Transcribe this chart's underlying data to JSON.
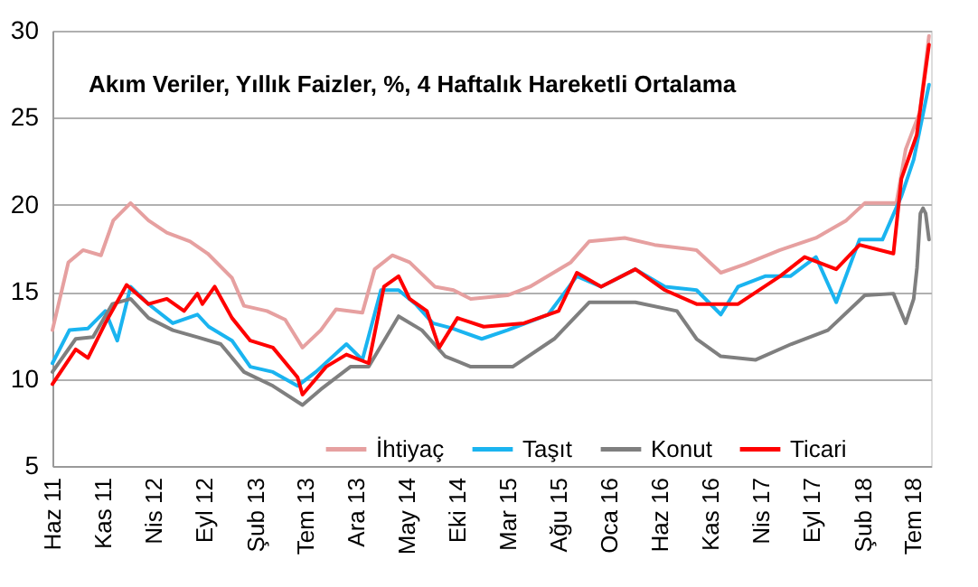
{
  "chart_data": {
    "type": "line",
    "title": "Akım Veriler, Yıllık Faizler, %, 4 Haftalık Hareketli Ortalama",
    "xlim": [
      "2011-06-01",
      "2018-08-25"
    ],
    "xticks": [
      {
        "value": "2011-06-01",
        "label": "Haz 11"
      },
      {
        "value": "2011-11-01",
        "label": "Kas 11"
      },
      {
        "value": "2012-04-01",
        "label": "Nis 12"
      },
      {
        "value": "2012-09-01",
        "label": "Eyl 12"
      },
      {
        "value": "2013-02-01",
        "label": "Şub 13"
      },
      {
        "value": "2013-07-01",
        "label": "Tem 13"
      },
      {
        "value": "2013-12-01",
        "label": "Ara 13"
      },
      {
        "value": "2014-05-01",
        "label": "May 14"
      },
      {
        "value": "2014-10-01",
        "label": "Eki 14"
      },
      {
        "value": "2015-03-01",
        "label": "Mar 15"
      },
      {
        "value": "2015-08-01",
        "label": "Ağu 15"
      },
      {
        "value": "2016-01-01",
        "label": "Oca 16"
      },
      {
        "value": "2016-06-01",
        "label": "Haz 16"
      },
      {
        "value": "2016-11-01",
        "label": "Kas 16"
      },
      {
        "value": "2017-04-01",
        "label": "Nis 17"
      },
      {
        "value": "2017-09-01",
        "label": "Eyl 17"
      },
      {
        "value": "2018-02-01",
        "label": "Şub 18"
      },
      {
        "value": "2018-07-01",
        "label": "Tem 18"
      }
    ],
    "ylim": [
      5,
      30
    ],
    "yticks": [
      5,
      10,
      15,
      20,
      25,
      30
    ],
    "grid": "y",
    "legend": "bottom",
    "marker": "none",
    "line_style": "solid",
    "series": [
      {
        "name": "İhtiyaç",
        "color": "#e6a0a0",
        "x": [
          "2011-06-01",
          "2011-07-19",
          "2011-09-01",
          "2011-10-25",
          "2011-12-01",
          "2012-01-22",
          "2012-03-16",
          "2012-05-10",
          "2012-07-19",
          "2012-09-10",
          "2012-11-22",
          "2012-12-28",
          "2013-03-07",
          "2013-05-01",
          "2013-06-22",
          "2013-08-16",
          "2013-10-01",
          "2013-12-19",
          "2014-01-25",
          "2014-03-19",
          "2014-05-10",
          "2014-07-25",
          "2014-09-19",
          "2014-11-10",
          "2015-02-28",
          "2015-05-07",
          "2015-09-07",
          "2015-11-01",
          "2016-02-16",
          "2016-05-16",
          "2016-09-19",
          "2016-12-01",
          "2017-02-13",
          "2017-05-28",
          "2017-09-13",
          "2017-12-13",
          "2018-02-07",
          "2018-05-13",
          "2018-06-10",
          "2018-07-22",
          "2018-08-19"
        ],
        "values": [
          12.8,
          16.7,
          17.4,
          17.1,
          19.1,
          20.1,
          19.1,
          18.4,
          17.9,
          17.2,
          15.8,
          14.2,
          13.9,
          13.4,
          11.8,
          12.8,
          14.0,
          13.8,
          16.3,
          17.1,
          16.7,
          15.3,
          15.1,
          14.6,
          14.8,
          15.3,
          16.7,
          17.9,
          18.1,
          17.7,
          17.4,
          16.1,
          16.6,
          17.4,
          18.1,
          19.1,
          20.1,
          20.1,
          23.2,
          25.3,
          29.7
        ]
      },
      {
        "name": "Taşıt",
        "color": "#1ab4f0",
        "x": [
          "2011-06-01",
          "2011-07-22",
          "2011-09-16",
          "2011-11-07",
          "2011-12-13",
          "2012-01-22",
          "2012-03-16",
          "2012-05-28",
          "2012-08-10",
          "2012-09-13",
          "2012-11-22",
          "2013-01-16",
          "2013-03-25",
          "2013-06-07",
          "2013-08-01",
          "2013-11-01",
          "2013-12-19",
          "2014-02-13",
          "2014-04-07",
          "2014-05-28",
          "2014-07-19",
          "2014-09-16",
          "2014-12-13",
          "2015-02-28",
          "2015-07-01",
          "2015-09-25",
          "2015-12-07",
          "2016-03-19",
          "2016-06-16",
          "2016-09-19",
          "2016-12-01",
          "2017-01-22",
          "2017-04-13",
          "2017-06-28",
          "2017-09-13",
          "2017-11-13",
          "2018-01-22",
          "2018-04-01",
          "2018-05-28",
          "2018-07-04",
          "2018-08-19"
        ],
        "values": [
          10.9,
          12.8,
          12.9,
          13.9,
          12.2,
          15.3,
          14.3,
          13.2,
          13.7,
          13.0,
          12.2,
          10.7,
          10.4,
          9.6,
          10.4,
          12.0,
          11.1,
          15.1,
          15.1,
          14.3,
          13.2,
          12.9,
          12.3,
          12.8,
          13.7,
          15.9,
          15.3,
          16.3,
          15.3,
          15.1,
          13.7,
          15.3,
          15.9,
          15.9,
          17.0,
          14.4,
          18.0,
          18.0,
          20.5,
          22.6,
          26.9
        ]
      },
      {
        "name": "Konut",
        "color": "#7f7f7f",
        "x": [
          "2011-06-01",
          "2011-08-10",
          "2011-10-01",
          "2011-11-28",
          "2012-01-22",
          "2012-03-16",
          "2012-05-28",
          "2012-08-10",
          "2012-10-19",
          "2012-12-28",
          "2013-03-25",
          "2013-06-22",
          "2013-08-16",
          "2013-11-13",
          "2014-01-07",
          "2014-04-07",
          "2014-06-16",
          "2014-08-25",
          "2014-11-10",
          "2015-03-16",
          "2015-07-19",
          "2015-11-01",
          "2016-03-19",
          "2016-07-22",
          "2016-09-19",
          "2016-12-01",
          "2017-03-16",
          "2017-07-01",
          "2017-10-19",
          "2018-02-07",
          "2018-05-04",
          "2018-06-10",
          "2018-07-04",
          "2018-07-14",
          "2018-07-24",
          "2018-08-01",
          "2018-08-09",
          "2018-08-19"
        ],
        "values": [
          10.4,
          12.3,
          12.4,
          14.3,
          14.6,
          13.5,
          12.8,
          12.4,
          12.0,
          10.4,
          9.6,
          8.5,
          9.4,
          10.7,
          10.7,
          13.6,
          12.8,
          11.3,
          10.7,
          10.7,
          12.3,
          14.4,
          14.4,
          13.9,
          12.3,
          11.3,
          11.1,
          12.0,
          12.8,
          14.8,
          14.9,
          13.2,
          14.6,
          16.4,
          19.5,
          19.8,
          19.5,
          18.0
        ]
      },
      {
        "name": "Ticari",
        "color": "#ff0000",
        "x": [
          "2011-06-01",
          "2011-08-10",
          "2011-09-16",
          "2011-11-07",
          "2012-01-10",
          "2012-03-16",
          "2012-05-10",
          "2012-07-01",
          "2012-08-10",
          "2012-08-25",
          "2012-10-01",
          "2012-11-22",
          "2013-01-16",
          "2013-03-25",
          "2013-06-07",
          "2013-06-22",
          "2013-09-01",
          "2013-11-01",
          "2014-01-07",
          "2014-02-22",
          "2014-04-07",
          "2014-05-10",
          "2014-07-01",
          "2014-08-07",
          "2014-10-01",
          "2014-12-19",
          "2015-04-19",
          "2015-08-01",
          "2015-09-25",
          "2015-12-07",
          "2016-03-19",
          "2016-06-16",
          "2016-09-19",
          "2017-01-22",
          "2017-05-28",
          "2017-08-10",
          "2017-11-13",
          "2018-01-22",
          "2018-05-04",
          "2018-05-28",
          "2018-07-13",
          "2018-08-19"
        ],
        "values": [
          9.7,
          11.7,
          11.2,
          13.2,
          15.4,
          14.3,
          14.6,
          13.9,
          14.9,
          14.3,
          15.3,
          13.5,
          12.2,
          11.8,
          10.1,
          9.1,
          10.7,
          11.4,
          10.9,
          15.3,
          15.9,
          14.6,
          13.9,
          11.8,
          13.5,
          13.0,
          13.2,
          13.9,
          16.1,
          15.3,
          16.3,
          15.1,
          14.3,
          14.3,
          15.9,
          17.0,
          16.3,
          17.7,
          17.2,
          21.5,
          24.0,
          29.2
        ]
      }
    ]
  }
}
